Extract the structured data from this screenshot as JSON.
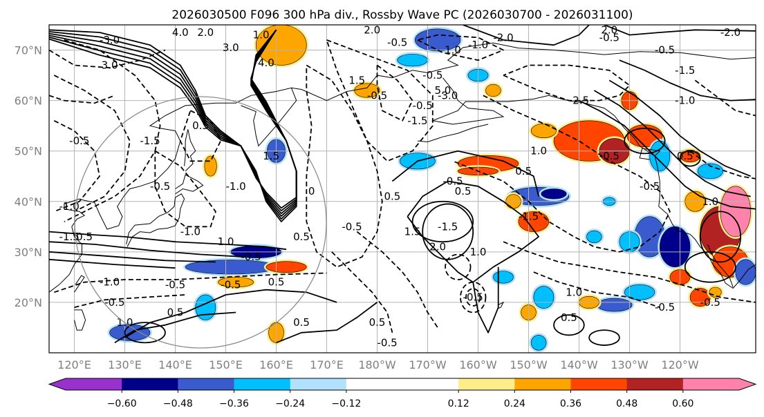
{
  "chart_data": {
    "type": "contour_map",
    "title": "2026030500 F096 300 hPa div., Rossby Wave PC (2026030700 - 2026031100)",
    "map": {
      "lat_ticks": [
        "20°N",
        "30°N",
        "40°N",
        "50°N",
        "60°N",
        "70°N"
      ],
      "lat_values": [
        20,
        30,
        40,
        50,
        60,
        70
      ],
      "lon_ticks": [
        "120°E",
        "130°E",
        "140°E",
        "150°E",
        "160°E",
        "170°E",
        "180°W",
        "170°W",
        "160°W",
        "150°W",
        "140°W",
        "130°W",
        "120°W"
      ],
      "lon_values": [
        120,
        130,
        140,
        150,
        160,
        170,
        180,
        190,
        200,
        210,
        220,
        230,
        240
      ],
      "lat_range": [
        10,
        75
      ],
      "lon_range": [
        115,
        255
      ],
      "grid": true
    },
    "colorbar": {
      "ticks": [
        "−0.60",
        "−0.48",
        "−0.36",
        "−0.24",
        "−0.12",
        "0.12",
        "0.24",
        "0.36",
        "0.48",
        "0.60"
      ],
      "tick_values": [
        -0.6,
        -0.48,
        -0.36,
        -0.24,
        -0.12,
        0.12,
        0.24,
        0.36,
        0.48,
        0.6
      ],
      "range": [
        -0.72,
        0.72
      ],
      "colors": [
        "#9932cc",
        "#00008b",
        "#3a5bcd",
        "#00bfff",
        "#b0e2ff",
        "#ffffff",
        "#ffec8b",
        "#ffa500",
        "#ff4500",
        "#b22222",
        "#ff82ab"
      ],
      "extend": "both"
    },
    "divergence_patches": [
      {
        "lon": 131,
        "lat": 14,
        "rx": 4,
        "ry": 1.6,
        "value": -0.4
      },
      {
        "lon": 146,
        "lat": 19,
        "rx": 2,
        "ry": 2.5,
        "value": -0.3
      },
      {
        "lon": 151,
        "lat": 27,
        "rx": 9,
        "ry": 1.4,
        "value": -0.4
      },
      {
        "lon": 156,
        "lat": 30,
        "rx": 5,
        "ry": 1.2,
        "value": -0.52
      },
      {
        "lon": 162,
        "lat": 27,
        "rx": 4,
        "ry": 1.1,
        "value": 0.4
      },
      {
        "lon": 152,
        "lat": 24,
        "rx": 3.5,
        "ry": 1.0,
        "value": 0.3
      },
      {
        "lon": 160,
        "lat": 14,
        "rx": 1.5,
        "ry": 2,
        "value": 0.3
      },
      {
        "lon": 160,
        "lat": 50,
        "rx": 1.8,
        "ry": 2.3,
        "value": -0.4
      },
      {
        "lon": 147,
        "lat": 47,
        "rx": 1.2,
        "ry": 2,
        "value": 0.35
      },
      {
        "lon": 161,
        "lat": 71,
        "rx": 5,
        "ry": 4,
        "value": 0.3
      },
      {
        "lon": 192,
        "lat": 72,
        "rx": 4.5,
        "ry": 2.2,
        "value": -0.42
      },
      {
        "lon": 187,
        "lat": 68,
        "rx": 3,
        "ry": 1.2,
        "value": -0.3
      },
      {
        "lon": 200,
        "lat": 65,
        "rx": 2,
        "ry": 1.2,
        "value": -0.3
      },
      {
        "lon": 178,
        "lat": 62,
        "rx": 2.5,
        "ry": 1.4,
        "value": 0.3
      },
      {
        "lon": 203,
        "lat": 62,
        "rx": 1.5,
        "ry": 1.2,
        "value": 0.3
      },
      {
        "lon": 188,
        "lat": 48,
        "rx": 3.5,
        "ry": 1.6,
        "value": -0.3
      },
      {
        "lon": 202,
        "lat": 47.5,
        "rx": 6,
        "ry": 1.6,
        "value": 0.4
      },
      {
        "lon": 200,
        "lat": 46,
        "rx": 4,
        "ry": 0.8,
        "value": 0.36
      },
      {
        "lon": 212,
        "lat": 41,
        "rx": 6,
        "ry": 1.8,
        "value": -0.4
      },
      {
        "lon": 215,
        "lat": 41.5,
        "rx": 2.5,
        "ry": 1.0,
        "value": -0.55
      },
      {
        "lon": 211,
        "lat": 36,
        "rx": 3,
        "ry": 2,
        "value": 0.4
      },
      {
        "lon": 205,
        "lat": 25,
        "rx": 2,
        "ry": 1.2,
        "value": -0.3
      },
      {
        "lon": 213,
        "lat": 21,
        "rx": 2,
        "ry": 2.2,
        "value": -0.3
      },
      {
        "lon": 210,
        "lat": 18,
        "rx": 1.5,
        "ry": 1.5,
        "value": 0.3
      },
      {
        "lon": 222,
        "lat": 52,
        "rx": 7,
        "ry": 4,
        "value": 0.42
      },
      {
        "lon": 227,
        "lat": 50,
        "rx": 3,
        "ry": 2.5,
        "value": 0.52
      },
      {
        "lon": 233,
        "lat": 53,
        "rx": 3.5,
        "ry": 2.2,
        "value": 0.4
      },
      {
        "lon": 230,
        "lat": 60,
        "rx": 1.6,
        "ry": 1.8,
        "value": 0.4
      },
      {
        "lon": 236,
        "lat": 49,
        "rx": 2,
        "ry": 3,
        "value": -0.3
      },
      {
        "lon": 246,
        "lat": 46,
        "rx": 2.5,
        "ry": 1.5,
        "value": -0.3
      },
      {
        "lon": 242,
        "lat": 49,
        "rx": 2,
        "ry": 1.2,
        "value": 0.4
      },
      {
        "lon": 243,
        "lat": 40,
        "rx": 2,
        "ry": 2,
        "value": 0.3
      },
      {
        "lon": 234,
        "lat": 33,
        "rx": 3,
        "ry": 4,
        "value": -0.4
      },
      {
        "lon": 239,
        "lat": 31,
        "rx": 3,
        "ry": 4,
        "value": -0.55
      },
      {
        "lon": 230,
        "lat": 32,
        "rx": 2,
        "ry": 2,
        "value": -0.3
      },
      {
        "lon": 248,
        "lat": 34,
        "rx": 4,
        "ry": 5,
        "value": 0.48
      },
      {
        "lon": 251,
        "lat": 38,
        "rx": 3,
        "ry": 5,
        "value": 0.64
      },
      {
        "lon": 250,
        "lat": 28,
        "rx": 3.5,
        "ry": 3,
        "value": 0.42
      },
      {
        "lon": 240,
        "lat": 25,
        "rx": 2,
        "ry": 1.5,
        "value": 0.36
      },
      {
        "lon": 232,
        "lat": 22,
        "rx": 3,
        "ry": 1.5,
        "value": -0.3
      },
      {
        "lon": 227,
        "lat": 19.5,
        "rx": 3.5,
        "ry": 1.3,
        "value": -0.4
      },
      {
        "lon": 222,
        "lat": 20,
        "rx": 2,
        "ry": 1.2,
        "value": 0.3
      },
      {
        "lon": 244,
        "lat": 21,
        "rx": 2,
        "ry": 1.8,
        "value": 0.36
      },
      {
        "lon": 253,
        "lat": 26,
        "rx": 2,
        "ry": 2.5,
        "value": -0.45
      },
      {
        "lon": 223,
        "lat": 33,
        "rx": 1.5,
        "ry": 1.2,
        "value": -0.3
      },
      {
        "lon": 247,
        "lat": 22,
        "rx": 1.2,
        "ry": 1,
        "value": 0.3
      },
      {
        "lon": 213,
        "lat": 54,
        "rx": 2.5,
        "ry": 1.4,
        "value": 0.3
      },
      {
        "lon": 226,
        "lat": 40,
        "rx": 1.2,
        "ry": 0.8,
        "value": -0.3
      },
      {
        "lon": 212,
        "lat": 12,
        "rx": 1.5,
        "ry": 1.5,
        "value": -0.3
      },
      {
        "lon": 207,
        "lat": 40,
        "rx": 1.5,
        "ry": 1.4,
        "value": 0.3
      }
    ],
    "contour_labels": [
      {
        "text": "4.0",
        "lon": 141,
        "lat": 73.5
      },
      {
        "text": "2.0",
        "lon": 146,
        "lat": 73.5
      },
      {
        "text": "1.0",
        "lon": 157,
        "lat": 73
      },
      {
        "text": "3.0",
        "lon": 151,
        "lat": 70.5
      },
      {
        "text": "4.0",
        "lon": 158,
        "lat": 67.5
      },
      {
        "text": "-3.0",
        "lon": 127,
        "lat": 72
      },
      {
        "text": "3.0",
        "lon": 127,
        "lat": 67
      },
      {
        "text": "2.0",
        "lon": 179,
        "lat": 74
      },
      {
        "text": "-0.5",
        "lon": 184,
        "lat": 71.5
      },
      {
        "text": "1.0",
        "lon": 195,
        "lat": 70
      },
      {
        "text": "-1.0",
        "lon": 200,
        "lat": 71
      },
      {
        "text": "-2.0",
        "lon": 205,
        "lat": 72.5
      },
      {
        "text": "2.0",
        "lon": 226,
        "lat": 74
      },
      {
        "text": "-0.5",
        "lon": 226,
        "lat": 72.5
      },
      {
        "text": "-2.0",
        "lon": 250,
        "lat": 73.5
      },
      {
        "text": "-0.5",
        "lon": 237,
        "lat": 70
      },
      {
        "text": "-1.5",
        "lon": 241,
        "lat": 66
      },
      {
        "text": "-0.5",
        "lon": 191,
        "lat": 65
      },
      {
        "text": "-3.0",
        "lon": 194,
        "lat": 61
      },
      {
        "text": "5.0",
        "lon": 193,
        "lat": 62
      },
      {
        "text": "-0.5",
        "lon": 180,
        "lat": 61
      },
      {
        "text": "-1.5",
        "lon": 188,
        "lat": 56
      },
      {
        "text": "-2.5",
        "lon": 220,
        "lat": 60
      },
      {
        "text": "-1.0",
        "lon": 241,
        "lat": 60
      },
      {
        "text": "-0.5",
        "lon": 226,
        "lat": 49
      },
      {
        "text": "0.5",
        "lon": 241,
        "lat": 49
      },
      {
        "text": "-0.5",
        "lon": 234,
        "lat": 43
      },
      {
        "text": "1.0",
        "lon": 246,
        "lat": 40
      },
      {
        "text": "1.0",
        "lon": 212,
        "lat": 50
      },
      {
        "text": "-0.5",
        "lon": 195,
        "lat": 44
      },
      {
        "text": "0.5",
        "lon": 183,
        "lat": 41
      },
      {
        "text": "-1.5",
        "lon": 210,
        "lat": 37
      },
      {
        "text": "-1.5",
        "lon": 194,
        "lat": 35
      },
      {
        "text": "1.0",
        "lon": 200,
        "lat": 30
      },
      {
        "text": "-0.5",
        "lon": 199,
        "lat": 21
      },
      {
        "text": "1.0",
        "lon": 219,
        "lat": 22
      },
      {
        "text": "0.5",
        "lon": 218,
        "lat": 17
      },
      {
        "text": "-0.5",
        "lon": 237,
        "lat": 19
      },
      {
        "text": "-0.5",
        "lon": 246,
        "lat": 20
      },
      {
        "text": "0.5",
        "lon": 180,
        "lat": 16
      },
      {
        "text": "-0.5",
        "lon": 182,
        "lat": 12
      },
      {
        "text": "0.5",
        "lon": 165,
        "lat": 16
      },
      {
        "text": "-0.5",
        "lon": 155,
        "lat": 29
      },
      {
        "text": "-0.5",
        "lon": 151,
        "lat": 23.5
      },
      {
        "text": "0.5",
        "lon": 160,
        "lat": 24
      },
      {
        "text": "-0.5",
        "lon": 140,
        "lat": 23.5
      },
      {
        "text": "0.5",
        "lon": 140,
        "lat": 18
      },
      {
        "text": "-0.5",
        "lon": 128,
        "lat": 20
      },
      {
        "text": "-1.0",
        "lon": 127,
        "lat": 24
      },
      {
        "text": "1.0",
        "lon": 130,
        "lat": 16
      },
      {
        "text": "1.0",
        "lon": 150,
        "lat": 32
      },
      {
        "text": "-1.0",
        "lon": 143,
        "lat": 34
      },
      {
        "text": "-1.0",
        "lon": 152,
        "lat": 43
      },
      {
        "text": "-1.5",
        "lon": 135,
        "lat": 52
      },
      {
        "text": "-0.5",
        "lon": 137,
        "lat": 43
      },
      {
        "text": "-0.5",
        "lon": 121,
        "lat": 52
      },
      {
        "text": "-1.0",
        "lon": 119,
        "lat": 39
      },
      {
        "text": "-1.5",
        "lon": 119,
        "lat": 33
      },
      {
        "text": "0.5",
        "lon": 122,
        "lat": 33
      },
      {
        "text": "0.5",
        "lon": 145,
        "lat": 55
      },
      {
        "text": "1.5",
        "lon": 159,
        "lat": 49
      },
      {
        "text": "0",
        "lon": 167,
        "lat": 42
      },
      {
        "text": "0.5",
        "lon": 197,
        "lat": 42
      },
      {
        "text": "1.5",
        "lon": 187,
        "lat": 34
      },
      {
        "text": "2.0",
        "lon": 192,
        "lat": 31
      },
      {
        "text": "0.5",
        "lon": 209,
        "lat": 46
      },
      {
        "text": "-0.5",
        "lon": 189,
        "lat": 59
      },
      {
        "text": "1.5",
        "lon": 176,
        "lat": 64
      },
      {
        "text": "0.5",
        "lon": 165,
        "lat": 33
      },
      {
        "text": "-0.5",
        "lon": 175,
        "lat": 35
      }
    ],
    "coastline_note": "Asian coastline, Japan, Alaska, North American west coast"
  }
}
